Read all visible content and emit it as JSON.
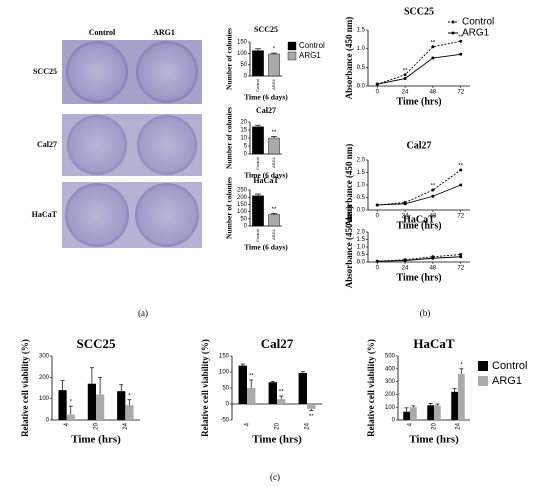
{
  "plates": {
    "columns": [
      "Control",
      "ARG1"
    ],
    "rows": [
      "SCC25",
      "Cal27",
      "HaCaT"
    ]
  },
  "panel_labels": [
    "(a)",
    "(b)",
    "(c)"
  ],
  "chart_data": [
    {
      "type": "bar",
      "title": "SCC25",
      "categories": [
        "Control",
        "ARG1"
      ],
      "values": [
        112,
        97
      ],
      "errors": [
        8,
        4
      ],
      "colors": [
        "#000000",
        "#aaaaaa"
      ],
      "ylim": [
        0,
        150
      ],
      "yticks": [
        0,
        50,
        100,
        150
      ],
      "xlabel": "Time (6 days)",
      "ylabel": "Number of colonies",
      "legend": true,
      "annotations": [
        {
          "category": "ARG1",
          "text": "*"
        }
      ]
    },
    {
      "type": "bar",
      "title": "Cal27",
      "categories": [
        "Control",
        "ARG1"
      ],
      "values": [
        17,
        10
      ],
      "errors": [
        1,
        1
      ],
      "colors": [
        "#000000",
        "#aaaaaa"
      ],
      "ylim": [
        0,
        20
      ],
      "yticks": [
        0,
        5,
        10,
        15,
        20
      ],
      "xlabel": "Time (6 days)",
      "ylabel": "Number of colonies",
      "legend": false,
      "annotations": [
        {
          "category": "ARG1",
          "text": "**"
        }
      ]
    },
    {
      "type": "bar",
      "title": "HaCaT",
      "categories": [
        "Control",
        "ARG1"
      ],
      "values": [
        210,
        80
      ],
      "errors": [
        12,
        8
      ],
      "colors": [
        "#000000",
        "#aaaaaa"
      ],
      "ylim": [
        0,
        250
      ],
      "yticks": [
        0,
        50,
        100,
        150,
        200,
        250
      ],
      "xlabel": "Time (6 days)",
      "ylabel": "Number of colonies",
      "legend": false,
      "annotations": [
        {
          "category": "ARG1",
          "text": "**"
        }
      ]
    },
    {
      "type": "line",
      "title": "SCC25",
      "x": [
        0,
        24,
        48,
        72
      ],
      "xlim": [
        -8,
        80
      ],
      "xticks": [
        0,
        24,
        48,
        72
      ],
      "series": [
        {
          "name": "Control",
          "color": "#000000",
          "line_style": "dashed",
          "values": [
            0.05,
            0.3,
            1.05,
            1.2
          ]
        },
        {
          "name": "ARG1",
          "color": "#000000",
          "line_style": "solid",
          "values": [
            0.05,
            0.2,
            0.75,
            0.85
          ]
        }
      ],
      "ylim": [
        0,
        1.5
      ],
      "yticks": [
        {
          "value": 0,
          "label": "0.0"
        },
        0.5,
        {
          "value": 1,
          "label": "1.0"
        },
        1.5
      ],
      "xlabel": "Time (hrs)",
      "ylabel": "Absorbance (450 nm)",
      "legend": true,
      "annotations": [
        {
          "x": 24,
          "text": "**"
        },
        {
          "x": 48,
          "text": "**"
        },
        {
          "x": 72,
          "text": "**"
        }
      ]
    },
    {
      "type": "line",
      "title": "Cal27",
      "x": [
        0,
        24,
        48,
        72
      ],
      "xlim": [
        -8,
        80
      ],
      "xticks": [
        0,
        24,
        48,
        72
      ],
      "series": [
        {
          "name": "Control",
          "color": "#000000",
          "line_style": "dashed",
          "values": [
            0.2,
            0.3,
            0.8,
            1.6
          ]
        },
        {
          "name": "ARG1",
          "color": "#000000",
          "line_style": "solid",
          "values": [
            0.2,
            0.25,
            0.55,
            1.0
          ]
        }
      ],
      "ylim": [
        0,
        2
      ],
      "yticks": [
        {
          "value": 0,
          "label": "0.0"
        },
        0.5,
        {
          "value": 1,
          "label": "1.0"
        },
        1.5,
        {
          "value": 2,
          "label": "2.0"
        }
      ],
      "xlabel": "Time (hrs)",
      "ylabel": "Absorbance (450 nm)",
      "legend": false,
      "annotations": [
        {
          "x": 48,
          "text": "**"
        },
        {
          "x": 72,
          "text": "**"
        }
      ]
    },
    {
      "type": "line",
      "title": "HaCaT",
      "x": [
        0,
        24,
        48,
        72
      ],
      "xlim": [
        -8,
        80
      ],
      "xticks": [
        0,
        24,
        48,
        72
      ],
      "series": [
        {
          "name": "Control",
          "color": "#000000",
          "line_style": "dashed",
          "values": [
            0.05,
            0.15,
            0.35,
            0.5
          ]
        },
        {
          "name": "ARG1",
          "color": "#000000",
          "line_style": "solid",
          "values": [
            0.05,
            0.1,
            0.25,
            0.35
          ]
        }
      ],
      "ylim": [
        0,
        2
      ],
      "yticks": [
        {
          "value": 0,
          "label": "0.0"
        },
        0.5,
        {
          "value": 1,
          "label": "1.0"
        },
        1.5,
        {
          "value": 2,
          "label": "2.0"
        }
      ],
      "xlabel": "Time (hrs)",
      "ylabel": "Absorbance (450 nm)",
      "legend": false,
      "annotations": []
    },
    {
      "type": "grouped_bar",
      "title": "SCC25",
      "categories": [
        "4",
        "20",
        "24"
      ],
      "series": [
        {
          "name": "Control",
          "color": "#000000",
          "values": [
            140,
            170,
            135
          ],
          "errors": [
            45,
            75,
            30
          ]
        },
        {
          "name": "ARG1",
          "color": "#aaaaaa",
          "values": [
            25,
            120,
            70
          ],
          "errors": [
            40,
            80,
            25
          ]
        }
      ],
      "ylim": [
        0,
        300
      ],
      "yticks": [
        0,
        100,
        200,
        300
      ],
      "xlabel": "Time (hrs)",
      "ylabel": "Relative cell viability (%)",
      "legend": false,
      "annotations": [
        {
          "category": "4",
          "series": "ARG1",
          "text": "*"
        },
        {
          "category": "24",
          "series": "ARG1",
          "text": "*"
        }
      ]
    },
    {
      "type": "grouped_bar",
      "title": "Cal27",
      "categories": [
        "4",
        "20",
        "24"
      ],
      "series": [
        {
          "name": "Control",
          "color": "#000000",
          "values": [
            120,
            68,
            97
          ],
          "errors": [
            5,
            3,
            4
          ]
        },
        {
          "name": "ARG1",
          "color": "#aaaaaa",
          "values": [
            50,
            15,
            -15
          ],
          "errors": [
            25,
            10,
            5
          ]
        }
      ],
      "ylim": [
        -50,
        150
      ],
      "yticks": [
        -50,
        0,
        50,
        100,
        150
      ],
      "xlabel": "Time (hrs)",
      "ylabel": "Relative cell viability (%)",
      "legend": false,
      "annotations": [
        {
          "category": "4",
          "series": "ARG1",
          "text": "**"
        },
        {
          "category": "20",
          "series": "ARG1",
          "text": "**"
        },
        {
          "category": "24",
          "series": "ARG1",
          "text": "**"
        }
      ]
    },
    {
      "type": "grouped_bar",
      "title": "HaCaT",
      "categories": [
        "4",
        "20",
        "24"
      ],
      "series": [
        {
          "name": "Control",
          "color": "#000000",
          "values": [
            65,
            115,
            220
          ],
          "errors": [
            30,
            15,
            25
          ]
        },
        {
          "name": "ARG1",
          "color": "#aaaaaa",
          "values": [
            100,
            115,
            360
          ],
          "errors": [
            10,
            10,
            40
          ]
        }
      ],
      "ylim": [
        0,
        500
      ],
      "yticks": [
        0,
        100,
        200,
        300,
        400,
        500
      ],
      "xlabel": "Time (hrs)",
      "ylabel": "Relative cell viability (%)",
      "legend": true,
      "annotations": [
        {
          "category": "24",
          "series": "ARG1",
          "text": "*"
        }
      ]
    }
  ]
}
